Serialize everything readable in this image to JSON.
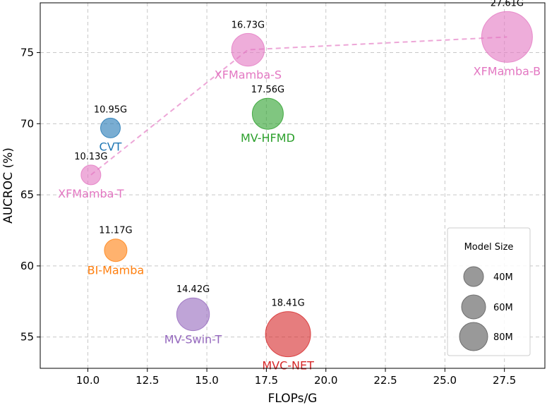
{
  "chart_data": {
    "type": "scatter",
    "xlabel": "FLOPs/G",
    "ylabel": "AUCROC (%)",
    "xlim": [
      8.0,
      29.2
    ],
    "ylim": [
      52.8,
      78.5
    ],
    "xticks": [
      10.0,
      12.5,
      15.0,
      17.5,
      20.0,
      22.5,
      25.0,
      27.5
    ],
    "yticks": [
      55,
      60,
      65,
      70,
      75
    ],
    "grid": true,
    "points": [
      {
        "name": "XFMamba-T",
        "flops_label": "10.13G",
        "x": 10.13,
        "y": 66.4,
        "size": 35,
        "color": "#e377c2",
        "label_side": "below"
      },
      {
        "name": "CVT",
        "flops_label": "10.95G",
        "x": 10.95,
        "y": 69.7,
        "size": 35,
        "color": "#1f77b4",
        "label_side": "below"
      },
      {
        "name": "BI-Mamba",
        "flops_label": "11.17G",
        "x": 11.17,
        "y": 61.1,
        "size": 40,
        "color": "#ff7f0e",
        "label_side": "below"
      },
      {
        "name": "MV-Swin-T",
        "flops_label": "14.42G",
        "x": 14.42,
        "y": 56.6,
        "size": 58,
        "color": "#9467bd",
        "label_side": "below"
      },
      {
        "name": "XFMamba-S",
        "flops_label": "16.73G",
        "x": 16.73,
        "y": 75.2,
        "size": 58,
        "color": "#e377c2",
        "label_side": "below"
      },
      {
        "name": "MV-HFMD",
        "flops_label": "17.56G",
        "x": 17.56,
        "y": 70.7,
        "size": 55,
        "color": "#2ca02c",
        "label_side": "below"
      },
      {
        "name": "MVC-NET",
        "flops_label": "18.41G",
        "x": 18.41,
        "y": 55.2,
        "size": 80,
        "color": "#d62728",
        "label_side": "below"
      },
      {
        "name": "XFMamba-B",
        "flops_label": "27.61G",
        "x": 27.61,
        "y": 76.1,
        "size": 90,
        "color": "#e377c2",
        "label_side": "below"
      }
    ],
    "trend_line": {
      "series": [
        "XFMamba-T",
        "XFMamba-S",
        "XFMamba-B"
      ],
      "color": "#e377c2",
      "style": "dashed"
    },
    "legend": {
      "title": "Model Size",
      "placement": "lower-right",
      "entries": [
        {
          "label": "40M",
          "size": 40
        },
        {
          "label": "60M",
          "size": 60
        },
        {
          "label": "80M",
          "size": 80
        }
      ],
      "color": "#808080"
    }
  }
}
